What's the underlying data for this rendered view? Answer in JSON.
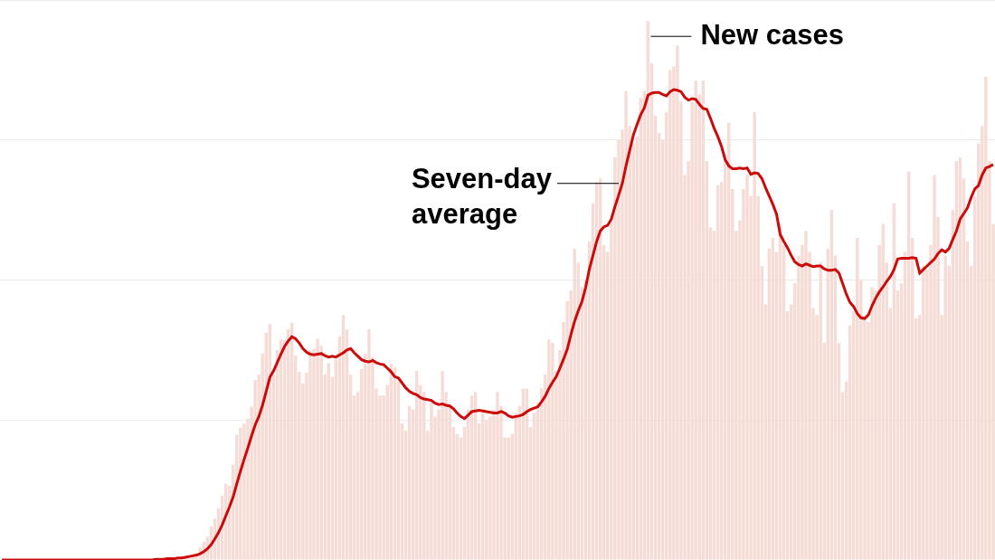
{
  "chart_data": {
    "type": "bar",
    "categories": [
      null,
      null,
      null,
      null,
      null,
      null,
      null,
      null,
      null,
      null,
      null,
      null,
      null,
      null,
      null,
      null,
      null,
      null,
      null,
      null,
      null,
      null,
      null,
      null,
      null,
      null,
      null,
      null,
      null,
      null,
      null,
      null,
      null,
      null,
      null,
      null,
      null,
      null,
      null,
      null,
      null,
      null,
      null,
      null,
      null,
      null,
      null,
      null,
      null,
      null,
      null,
      null,
      null,
      null,
      null,
      null,
      null,
      null,
      null,
      null,
      null,
      null,
      null,
      null,
      null,
      null,
      null,
      null,
      null,
      null,
      null,
      null,
      null,
      null,
      null,
      null,
      null,
      null,
      null,
      null,
      null,
      null,
      null,
      null,
      null,
      null,
      null,
      null,
      null,
      null,
      null,
      null,
      null,
      null,
      null,
      null,
      null,
      null,
      null,
      null,
      null,
      null,
      null,
      null,
      null,
      null,
      null,
      null,
      null,
      null,
      null,
      null,
      null,
      null,
      null,
      null,
      null,
      null,
      null,
      null,
      null,
      null,
      null,
      null,
      null,
      null,
      null,
      null,
      null,
      null,
      null,
      null,
      null,
      null,
      null,
      null,
      null,
      null,
      null,
      null,
      null,
      null,
      null,
      null,
      null,
      null,
      null,
      null,
      null,
      null,
      null,
      null,
      null,
      null,
      null,
      null,
      null,
      null,
      null,
      null,
      null,
      null,
      null,
      null,
      null,
      null,
      null,
      null,
      null,
      null,
      null,
      null,
      null,
      null,
      null,
      null,
      null,
      null,
      null,
      null,
      null,
      null,
      null,
      null,
      null,
      null,
      null,
      null,
      null,
      null,
      null,
      null,
      null,
      null,
      null,
      null,
      null,
      null,
      null,
      null,
      null,
      null,
      null,
      null,
      null,
      null,
      null,
      null,
      null,
      null,
      null,
      null,
      null,
      null,
      null,
      null,
      null,
      null,
      null,
      null,
      null,
      null,
      null,
      null,
      null,
      null,
      null,
      null,
      null,
      null,
      null,
      null,
      null,
      null,
      null,
      null,
      null,
      null,
      null,
      null,
      null,
      null,
      null,
      null,
      null,
      null,
      null,
      null,
      null,
      null,
      null,
      null,
      null,
      null,
      null,
      null,
      null,
      null,
      null,
      null,
      null,
      null,
      null,
      null,
      null,
      null,
      null,
      null,
      null,
      null,
      null
    ],
    "series": [
      {
        "name": "New cases",
        "type": "bar",
        "color": "#f6dcd6",
        "values": [
          0,
          0,
          0,
          0,
          0,
          0,
          0,
          0,
          0,
          0,
          0,
          0,
          0,
          0,
          0,
          0,
          0,
          0,
          0,
          0,
          0,
          0,
          0,
          0,
          0,
          0,
          0,
          0,
          0,
          0,
          0,
          0,
          0,
          0,
          0,
          0,
          0,
          0,
          0,
          0,
          0,
          0,
          0.1,
          0.1,
          0.1,
          0.1,
          0.2,
          0.3,
          0.3,
          0.4,
          0.4,
          0.6,
          0.7,
          0.8,
          1.8,
          2.6,
          3.3,
          4.8,
          5.9,
          7.4,
          9.2,
          10.9,
          10.6,
          13.6,
          17.9,
          18.9,
          19.5,
          20.2,
          21.9,
          25.7,
          26.5,
          29.5,
          32.5,
          33.7,
          26.5,
          30.0,
          31.5,
          31.4,
          33.0,
          33.9,
          29.2,
          26.9,
          25.2,
          26.8,
          29.9,
          30.1,
          31.6,
          30.6,
          26.5,
          28.1,
          26.1,
          28.7,
          32.0,
          35.0,
          33.0,
          26.5,
          23.5,
          24.0,
          27.3,
          29.5,
          33.0,
          29.0,
          24.5,
          23.5,
          23.5,
          25.0,
          28.0,
          27.5,
          25.5,
          19.5,
          18.5,
          22.0,
          21.5,
          27.0,
          25.0,
          24.0,
          18.5,
          22.5,
          20.5,
          21.5,
          27.0,
          24.0,
          22.0,
          19.0,
          18.0,
          17.5,
          19.0,
          21.5,
          23.5,
          24.0,
          19.5,
          21.0,
          20.0,
          20.5,
          21.5,
          24.0,
          22.0,
          17.5,
          17.5,
          18.0,
          21.0,
          22.0,
          24.5,
          24.5,
          19.0,
          21.0,
          22.5,
          24.5,
          26.5,
          31.5,
          31.0,
          27.0,
          30.0,
          34.0,
          37.0,
          38.5,
          44.5,
          42.5,
          39.0,
          40.0,
          45.5,
          51.0,
          54.0,
          54.5,
          45.0,
          44.0,
          48.5,
          57.5,
          60.0,
          61.5,
          67.0,
          62.0,
          59.5,
          60.5,
          66.0,
          67.0,
          77.0,
          71.0,
          63.5,
          61.0,
          60.0,
          64.0,
          70.0,
          70.5,
          73.5,
          65.5,
          55.0,
          57.0,
          65.5,
          68.5,
          66.5,
          68.5,
          57.0,
          47.5,
          47.0,
          53.5,
          54.0,
          58.0,
          62.5,
          53.0,
          47.0,
          48.5,
          53.0,
          55.0,
          52.0,
          64.0,
          52.0,
          42.0,
          36.5,
          44.5,
          46.0,
          44.0,
          48.0,
          45.0,
          35.5,
          36.5,
          39.5,
          43.5,
          45.0,
          47.0,
          44.0,
          36.0,
          35.0,
          42.5,
          31.0,
          44.5,
          50.0,
          43.5,
          31.0,
          24.0,
          25.5,
          33.5,
          35.5,
          46.0,
          40.0,
          34.5,
          34.0,
          39.0,
          38.5,
          45.0,
          48.0,
          42.5,
          36.0,
          51.0,
          38.5,
          39.5,
          44.0,
          55.5,
          46.0,
          34.5,
          35.0,
          42.0,
          41.5,
          45.0,
          55.0,
          49.0,
          35.0,
          43.5,
          42.0,
          50.0,
          57.0,
          57.5,
          54.5,
          45.5,
          42.0,
          52.0,
          59.5,
          62.0,
          69.0,
          57.0,
          48.0
        ]
      },
      {
        "name": "Seven-day average",
        "type": "line",
        "color": "#cc0a0a",
        "values": [
          0,
          0,
          0,
          0,
          0,
          0,
          0,
          0,
          0,
          0,
          0,
          0,
          0,
          0,
          0,
          0,
          0,
          0,
          0,
          0,
          0,
          0,
          0,
          0,
          0,
          0,
          0,
          0,
          0,
          0,
          0,
          0,
          0,
          0,
          0,
          0,
          0,
          0,
          0,
          0,
          0,
          0,
          0.1,
          0.1,
          0.1,
          0.2,
          0.2,
          0.2,
          0.3,
          0.3,
          0.4,
          0.5,
          0.6,
          0.7,
          0.9,
          1.2,
          1.6,
          2.2,
          3.0,
          3.9,
          5.0,
          6.3,
          7.6,
          9.0,
          10.9,
          12.7,
          14.4,
          16.0,
          17.7,
          19.3,
          20.5,
          22.1,
          24.1,
          26.1,
          27.0,
          28.2,
          29.4,
          30.5,
          31.3,
          31.9,
          31.6,
          31.0,
          30.2,
          29.7,
          29.4,
          29.3,
          29.4,
          29.5,
          29.2,
          29.0,
          29.1,
          29.0,
          29.3,
          29.6,
          30.0,
          30.2,
          29.6,
          29.1,
          28.6,
          28.4,
          28.3,
          28.5,
          28.2,
          28.0,
          27.9,
          27.4,
          26.9,
          26.2,
          26.0,
          25.3,
          24.6,
          24.1,
          23.8,
          23.6,
          23.2,
          23.0,
          22.9,
          22.8,
          22.4,
          22.2,
          22.3,
          22.1,
          22.0,
          21.6,
          21.0,
          20.5,
          20.2,
          20.7,
          21.2,
          21.3,
          21.4,
          21.3,
          21.2,
          21.1,
          21.0,
          21.0,
          21.2,
          21.0,
          20.6,
          20.4,
          20.5,
          20.6,
          20.8,
          21.2,
          21.5,
          21.7,
          21.9,
          22.6,
          23.4,
          24.5,
          25.4,
          26.2,
          27.4,
          28.7,
          30.1,
          32.2,
          34.1,
          35.6,
          36.9,
          38.9,
          41.5,
          43.5,
          45.5,
          47.0,
          47.6,
          47.8,
          48.7,
          50.5,
          52.1,
          53.8,
          56.3,
          58.5,
          60.7,
          62.2,
          63.6,
          64.6,
          66.4,
          66.7,
          66.8,
          66.8,
          66.5,
          66.3,
          66.9,
          67.2,
          67.1,
          66.9,
          66.1,
          65.7,
          65.9,
          65.8,
          65.1,
          64.5,
          64.4,
          63.1,
          61.7,
          60.5,
          59.1,
          57.2,
          56.3,
          55.9,
          55.9,
          56.0,
          55.9,
          56.0,
          55.1,
          55.3,
          55.2,
          54.5,
          53.2,
          52.0,
          50.8,
          49.4,
          46.5,
          45.5,
          44.6,
          43.5,
          42.6,
          42.2,
          42.0,
          42.3,
          42.1,
          41.9,
          42.0,
          42.0,
          41.6,
          41.4,
          41.4,
          41.5,
          41.0,
          39.5,
          38.0,
          36.8,
          36.2,
          35.2,
          34.6,
          34.5,
          35.0,
          36.3,
          37.4,
          38.3,
          39.0,
          39.8,
          40.5,
          41.5,
          43.0,
          43.1,
          43.1,
          43.1,
          43.2,
          43.1,
          41.0,
          41.5,
          42.0,
          42.5,
          43.0,
          43.8,
          44.3,
          44.0,
          44.5,
          45.8,
          47.0,
          48.7,
          49.5,
          50.3,
          51.8,
          53.0,
          53.5,
          55.0,
          56.0,
          56.2,
          56.5
        ]
      }
    ],
    "ylim": [
      0,
      80
    ],
    "yticks": [
      0,
      20,
      40,
      60,
      80
    ],
    "grid": true,
    "tick_labels": false
  }
}
